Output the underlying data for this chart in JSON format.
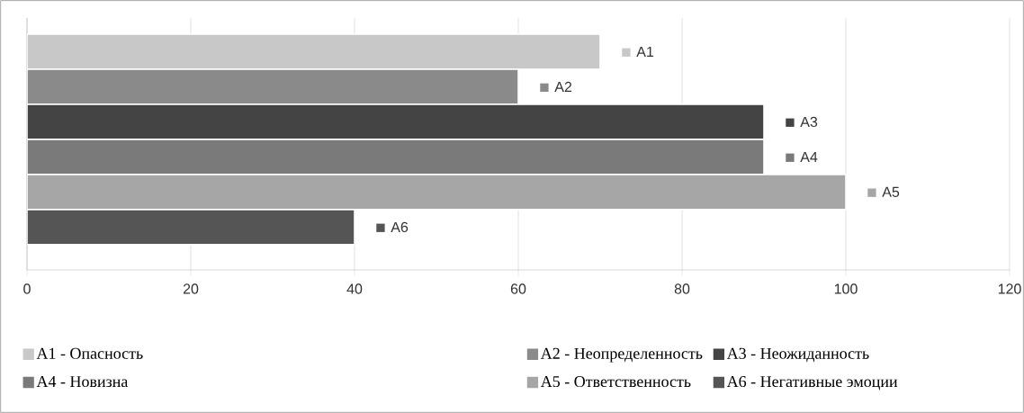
{
  "chart_data": {
    "type": "bar",
    "orientation": "horizontal",
    "categories": [
      null
    ],
    "series": [
      {
        "name": "A1 - Опасность",
        "color": "#c8c8c8",
        "values": [
          70
        ],
        "value_labels": [
          "A1"
        ]
      },
      {
        "name": "A2 - Неопределенность",
        "color": "#8a8a8a",
        "values": [
          60
        ],
        "value_labels": [
          "A2"
        ]
      },
      {
        "name": "A3 - Неожиданность",
        "color": "#444444",
        "values": [
          90
        ],
        "value_labels": [
          "A3"
        ]
      },
      {
        "name": "A4 - Новизна",
        "color": "#7a7a7a",
        "values": [
          90
        ],
        "value_labels": [
          "A4"
        ]
      },
      {
        "name": "A5 - Ответственность",
        "color": "#a6a6a6",
        "values": [
          100
        ],
        "value_labels": [
          "A5"
        ]
      },
      {
        "name": "A6 - Негативные эмоции",
        "color": "#555555",
        "values": [
          40
        ],
        "value_labels": [
          "A6"
        ]
      }
    ],
    "xlim": [
      0,
      120
    ],
    "xticks": [
      0,
      20,
      40,
      60,
      80,
      100,
      120
    ],
    "grid": "x",
    "legend": "bottom"
  }
}
